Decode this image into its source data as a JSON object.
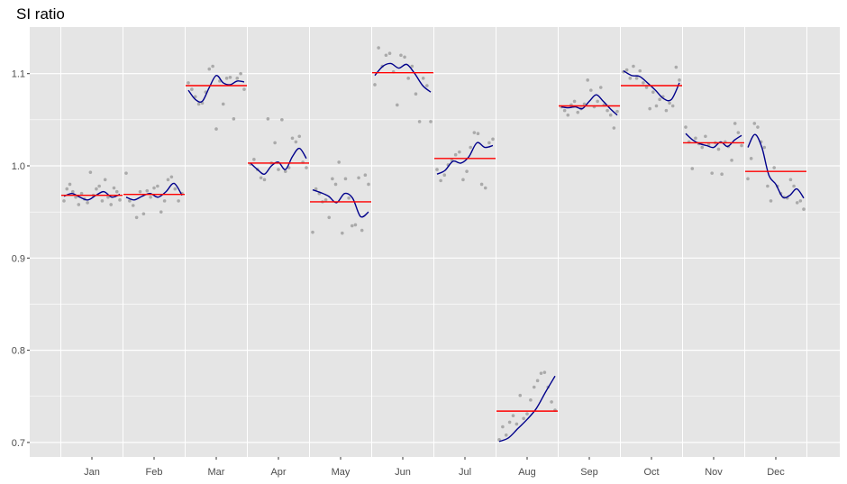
{
  "chart_data": {
    "type": "line",
    "title": "SI ratio",
    "xlabel": "",
    "ylabel": "",
    "ylim": [
      0.69,
      1.145
    ],
    "yticks": [
      0.7,
      0.8,
      0.9,
      1.0,
      1.1
    ],
    "ytick_labels": [
      "0.7",
      "0.8",
      "0.9",
      "1.0",
      "1.1"
    ],
    "grid": true,
    "colors": {
      "panel": "#e5e5e5",
      "grid": "#ffffff",
      "points": "#aaaaaa",
      "smooth": "#00008b",
      "mean": "#ff0000"
    },
    "categories": [
      "Jan",
      "Feb",
      "Mar",
      "Apr",
      "May",
      "Jun",
      "Jul",
      "Aug",
      "Sep",
      "Oct",
      "Nov",
      "Dec"
    ],
    "months": [
      {
        "label": "Jan",
        "mean": 0.968,
        "smooth": [
          0.967,
          0.97,
          0.966,
          0.963,
          0.968,
          0.972,
          0.966,
          0.969
        ],
        "points": [
          0.962,
          0.975,
          0.98,
          0.972,
          0.966,
          0.958,
          0.97,
          0.964,
          0.96,
          0.993,
          0.968,
          0.975,
          0.978,
          0.962,
          0.985,
          0.966,
          0.958,
          0.976,
          0.972,
          0.963
        ]
      },
      {
        "label": "Feb",
        "mean": 0.969,
        "smooth": [
          0.966,
          0.963,
          0.967,
          0.97,
          0.966,
          0.972,
          0.981,
          0.968
        ],
        "points": [
          0.992,
          0.962,
          0.957,
          0.944,
          0.972,
          0.948,
          0.973,
          0.966,
          0.976,
          0.978,
          0.95,
          0.962,
          0.985,
          0.988,
          0.975,
          0.962,
          0.97
        ]
      },
      {
        "label": "Mar",
        "mean": 1.087,
        "smooth": [
          1.082,
          1.072,
          1.07,
          1.085,
          1.098,
          1.09,
          1.088,
          1.092,
          1.091
        ],
        "points": [
          1.09,
          1.083,
          1.075,
          1.067,
          1.068,
          1.08,
          1.105,
          1.108,
          1.04,
          1.092,
          1.067,
          1.095,
          1.096,
          1.051,
          1.095,
          1.1,
          1.083
        ]
      },
      {
        "label": "Apr",
        "mean": 1.003,
        "smooth": [
          1.003,
          0.996,
          0.991,
          1.0,
          1.004,
          0.996,
          1.01,
          1.019,
          1.008
        ],
        "points": [
          1.002,
          1.007,
          0.996,
          0.987,
          0.985,
          1.051,
          1.003,
          1.025,
          0.996,
          1.05,
          0.994,
          0.998,
          1.03,
          1.026,
          1.032,
          1.004,
          0.998
        ]
      },
      {
        "label": "May",
        "mean": 0.961,
        "smooth": [
          0.974,
          0.971,
          0.967,
          0.96,
          0.97,
          0.965,
          0.945,
          0.95
        ],
        "points": [
          0.928,
          0.975,
          0.97,
          0.961,
          0.963,
          0.944,
          0.986,
          0.98,
          1.004,
          0.927,
          0.986,
          0.965,
          0.935,
          0.936,
          0.987,
          0.93,
          0.99,
          0.98
        ]
      },
      {
        "label": "Jun",
        "mean": 1.101,
        "smooth": [
          1.098,
          1.108,
          1.111,
          1.106,
          1.11,
          1.1,
          1.087,
          1.08
        ],
        "points": [
          1.088,
          1.128,
          1.108,
          1.12,
          1.122,
          1.102,
          1.066,
          1.12,
          1.118,
          1.095,
          1.108,
          1.078,
          1.048,
          1.095,
          1.087,
          1.048
        ]
      },
      {
        "label": "Jul",
        "mean": 1.008,
        "smooth": [
          0.991,
          0.995,
          1.005,
          1.003,
          1.01,
          1.025,
          1.02,
          1.022
        ],
        "points": [
          0.996,
          0.984,
          0.99,
          1.001,
          1.006,
          1.012,
          1.015,
          0.985,
          0.994,
          1.02,
          1.036,
          1.035,
          0.98,
          0.976,
          1.025,
          1.029
        ]
      },
      {
        "label": "Aug",
        "mean": 0.734,
        "smooth": [
          0.701,
          0.705,
          0.715,
          0.725,
          0.737,
          0.755,
          0.772
        ],
        "points": [
          0.703,
          0.717,
          0.708,
          0.722,
          0.729,
          0.72,
          0.751,
          0.726,
          0.731,
          0.746,
          0.76,
          0.767,
          0.775,
          0.776,
          0.76,
          0.744,
          0.735
        ]
      },
      {
        "label": "Sep",
        "mean": 1.065,
        "smooth": [
          1.064,
          1.063,
          1.064,
          1.062,
          1.07,
          1.077,
          1.07,
          1.062,
          1.055
        ],
        "points": [
          1.064,
          1.06,
          1.055,
          1.066,
          1.07,
          1.058,
          1.062,
          1.067,
          1.093,
          1.082,
          1.064,
          1.07,
          1.085,
          1.066,
          1.06,
          1.055,
          1.041,
          1.059
        ]
      },
      {
        "label": "Oct",
        "mean": 1.087,
        "smooth": [
          1.103,
          1.098,
          1.097,
          1.09,
          1.082,
          1.073,
          1.072,
          1.09
        ],
        "points": [
          1.102,
          1.104,
          1.095,
          1.108,
          1.095,
          1.103,
          1.09,
          1.085,
          1.062,
          1.08,
          1.065,
          1.072,
          1.075,
          1.06,
          1.068,
          1.065,
          1.107,
          1.093
        ]
      },
      {
        "label": "Nov",
        "mean": 1.025,
        "smooth": [
          1.035,
          1.028,
          1.024,
          1.022,
          1.02,
          1.026,
          1.021,
          1.028,
          1.033
        ],
        "points": [
          1.042,
          1.026,
          0.997,
          1.03,
          1.024,
          1.02,
          1.032,
          1.023,
          0.992,
          1.025,
          1.018,
          0.991,
          1.026,
          1.021,
          1.006,
          1.046,
          1.036,
          1.022
        ]
      },
      {
        "label": "Dec",
        "mean": 0.994,
        "smooth": [
          1.02,
          1.034,
          1.02,
          0.99,
          0.98,
          0.966,
          0.968,
          0.975,
          0.965
        ],
        "points": [
          0.986,
          1.008,
          1.046,
          1.042,
          1.026,
          1.02,
          0.978,
          0.962,
          0.998,
          0.978,
          0.97,
          0.966,
          0.965,
          0.985,
          0.978,
          0.96,
          0.962,
          0.953
        ]
      }
    ]
  }
}
